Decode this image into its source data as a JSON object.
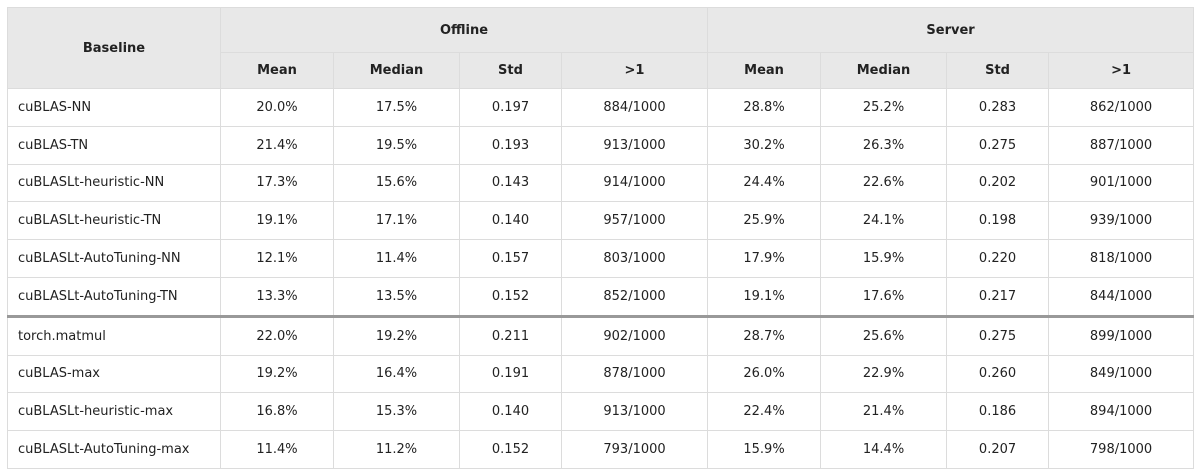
{
  "table": {
    "header": {
      "baseline": "Baseline",
      "groups": [
        "Offline",
        "Server"
      ],
      "columns": [
        "Mean",
        "Median",
        "Std",
        ">1",
        "Mean",
        "Median",
        "Std",
        ">1"
      ]
    },
    "row_groups": [
      [
        [
          "cuBLAS-NN",
          "20.0%",
          "17.5%",
          "0.197",
          "884/1000",
          "28.8%",
          "25.2%",
          "0.283",
          "862/1000"
        ],
        [
          "cuBLAS-TN",
          "21.4%",
          "19.5%",
          "0.193",
          "913/1000",
          "30.2%",
          "26.3%",
          "0.275",
          "887/1000"
        ],
        [
          "cuBLASLt-heuristic-NN",
          "17.3%",
          "15.6%",
          "0.143",
          "914/1000",
          "24.4%",
          "22.6%",
          "0.202",
          "901/1000"
        ],
        [
          "cuBLASLt-heuristic-TN",
          "19.1%",
          "17.1%",
          "0.140",
          "957/1000",
          "25.9%",
          "24.1%",
          "0.198",
          "939/1000"
        ],
        [
          "cuBLASLt-AutoTuning-NN",
          "12.1%",
          "11.4%",
          "0.157",
          "803/1000",
          "17.9%",
          "15.9%",
          "0.220",
          "818/1000"
        ],
        [
          "cuBLASLt-AutoTuning-TN",
          "13.3%",
          "13.5%",
          "0.152",
          "852/1000",
          "19.1%",
          "17.6%",
          "0.217",
          "844/1000"
        ]
      ],
      [
        [
          "torch.matmul",
          "22.0%",
          "19.2%",
          "0.211",
          "902/1000",
          "28.7%",
          "25.6%",
          "0.275",
          "899/1000"
        ],
        [
          "cuBLAS-max",
          "19.2%",
          "16.4%",
          "0.191",
          "878/1000",
          "26.0%",
          "22.9%",
          "0.260",
          "849/1000"
        ],
        [
          "cuBLASLt-heuristic-max",
          "16.8%",
          "15.3%",
          "0.140",
          "913/1000",
          "22.4%",
          "21.4%",
          "0.186",
          "894/1000"
        ],
        [
          "cuBLASLt-AutoTuning-max",
          "11.4%",
          "11.2%",
          "0.152",
          "793/1000",
          "15.9%",
          "14.4%",
          "0.207",
          "798/1000"
        ]
      ]
    ]
  }
}
